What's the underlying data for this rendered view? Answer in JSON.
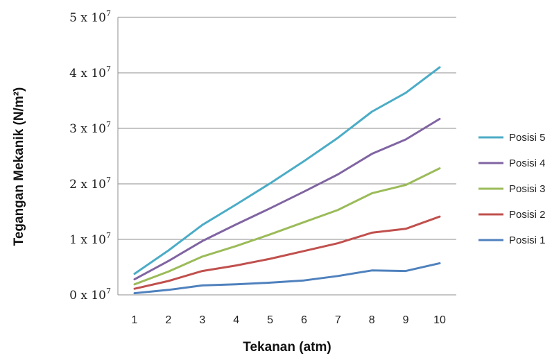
{
  "chart_data": {
    "type": "line",
    "title": "",
    "xlabel": "Tekanan (atm)",
    "ylabel": "Tegangan Mekanik (N/m²)",
    "x": [
      1,
      2,
      3,
      4,
      5,
      6,
      7,
      8,
      9,
      10
    ],
    "ylim": [
      0,
      5
    ],
    "y_ticks": [
      {
        "value": 0,
        "label": "0 x 10",
        "exp": "7"
      },
      {
        "value": 1,
        "label": "1 x 10",
        "exp": "7"
      },
      {
        "value": 2,
        "label": "2 x 10",
        "exp": "7"
      },
      {
        "value": 3,
        "label": "3 x 10",
        "exp": "7"
      },
      {
        "value": 4,
        "label": "4 x 10",
        "exp": "7"
      },
      {
        "value": 5,
        "label": "5 x 10",
        "exp": "7"
      }
    ],
    "y_unit_multiplier": "x 10^7",
    "grid": true,
    "legend_position": "right",
    "series": [
      {
        "name": "Posisi 5",
        "color": "#4bacc6",
        "values": [
          0.38,
          0.8,
          1.26,
          1.63,
          2.01,
          2.41,
          2.83,
          3.3,
          3.64,
          4.1
        ]
      },
      {
        "name": "Posisi 4",
        "color": "#8064a2",
        "values": [
          0.28,
          0.61,
          0.97,
          1.27,
          1.56,
          1.86,
          2.17,
          2.54,
          2.8,
          3.17
        ]
      },
      {
        "name": "Posisi 3",
        "color": "#9bbb59",
        "values": [
          0.19,
          0.42,
          0.69,
          0.88,
          1.09,
          1.31,
          1.53,
          1.83,
          1.98,
          2.28
        ]
      },
      {
        "name": "Posisi 2",
        "color": "#c0504d",
        "values": [
          0.11,
          0.25,
          0.43,
          0.53,
          0.65,
          0.79,
          0.93,
          1.12,
          1.19,
          1.41
        ]
      },
      {
        "name": "Posisi 1",
        "color": "#4f81bd",
        "values": [
          0.03,
          0.09,
          0.17,
          0.19,
          0.22,
          0.26,
          0.34,
          0.44,
          0.43,
          0.57
        ]
      }
    ]
  }
}
